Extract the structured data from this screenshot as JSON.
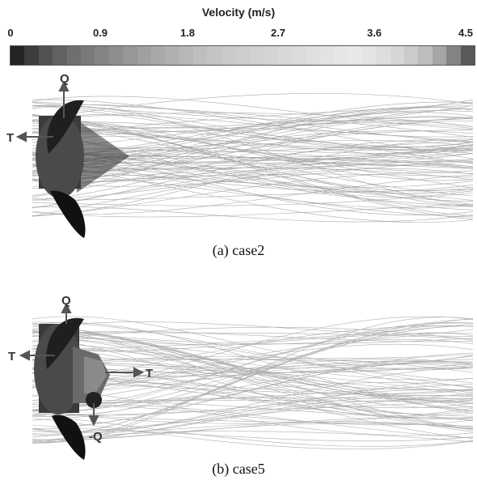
{
  "colorbar": {
    "title": "Velocity (m/s)",
    "ticks": [
      "0",
      "0.9",
      "1.8",
      "2.7",
      "3.6",
      "4.5"
    ],
    "range": [
      0,
      4.5
    ],
    "colors": [
      "#242424",
      "#3c3c3c",
      "#525252",
      "#626262",
      "#6f6f6f",
      "#7a7a7a",
      "#848484",
      "#8e8e8e",
      "#979797",
      "#a0a0a0",
      "#a8a8a8",
      "#b0b0b0",
      "#b7b7b7",
      "#bebebe",
      "#c4c4c4",
      "#c9c9c9",
      "#cdcdcd",
      "#d1d1d1",
      "#d4d4d4",
      "#d8d8d8",
      "#dcdcdc",
      "#dfdfdf",
      "#e3e3e3",
      "#e6e6e6",
      "#e8e8e8",
      "#e4e4e4",
      "#dedede",
      "#d6d6d6",
      "#cbcbcb",
      "#bdbdbd",
      "#a6a6a6",
      "#838383",
      "#5a5a5a"
    ]
  },
  "panel_a": {
    "caption": "(a)  case2",
    "labels": {
      "q": "Q",
      "t": "T"
    }
  },
  "panel_b": {
    "caption": "(b)  case5",
    "labels": {
      "q": "Q",
      "t_left": "T",
      "t_right": "T",
      "neg_q": "-Q"
    }
  }
}
